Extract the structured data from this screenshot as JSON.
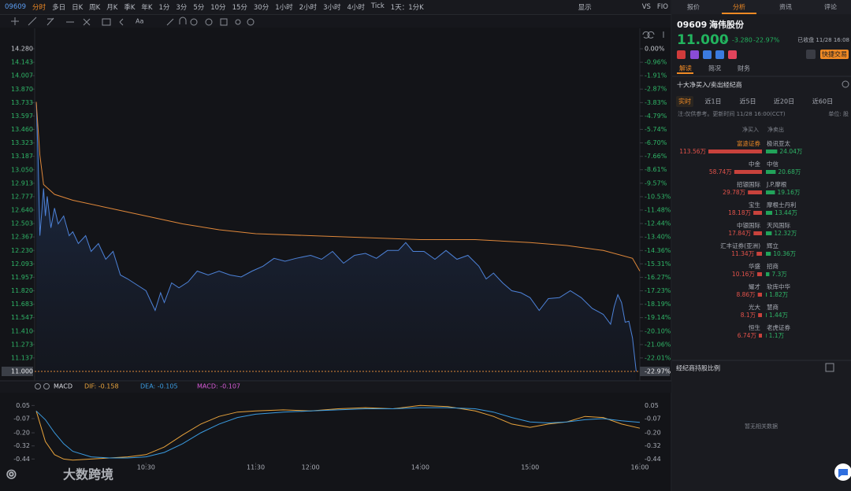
{
  "toolbar": {
    "code": "09609",
    "periods": [
      "分时",
      "多日",
      "日K",
      "周K",
      "月K",
      "季K",
      "年K",
      "1分",
      "3分",
      "5分",
      "10分",
      "15分",
      "30分",
      "1小时",
      "2小时",
      "3小时",
      "4小时",
      "Tick"
    ],
    "range": "1天：1分K",
    "display": "显示",
    "compare": "VS",
    "extra": "FIO",
    "font_tool": "Aa"
  },
  "chart_data": [
    {
      "type": "line",
      "xlim": [
        0,
        330
      ],
      "xticks": [
        {
          "value": 60,
          "label": "10:30"
        },
        {
          "value": 120,
          "label": "11:30"
        },
        {
          "value": 150,
          "label": "12:00"
        },
        {
          "value": 210,
          "label": "14:00"
        },
        {
          "value": 270,
          "label": "15:00"
        },
        {
          "value": 330,
          "label": "16:00"
        }
      ],
      "ylim": [
        10.9,
        14.38
      ],
      "yticks": [
        {
          "value": 14.28,
          "label": "14.280"
        },
        14.143,
        14.007,
        {
          "value": 13.87,
          "label": "13.870"
        },
        13.733,
        13.597,
        {
          "value": 13.46,
          "label": "13.460"
        },
        13.323,
        13.187,
        {
          "value": 13.05,
          "label": "13.050"
        },
        12.913,
        12.777,
        {
          "value": 12.64,
          "label": "12.640"
        },
        12.503,
        12.367,
        {
          "value": 12.23,
          "label": "12.230"
        },
        12.093,
        11.957,
        {
          "value": 11.82,
          "label": "11.820"
        },
        11.683,
        11.547,
        {
          "value": 11.41,
          "label": "11.410"
        },
        11.273,
        11.137
      ],
      "y2lim": [
        -23.67,
        0.7
      ],
      "y2ticks": [
        {
          "value": 0,
          "label": "0.00%"
        },
        {
          "value": -0.96,
          "label": "-0.96%"
        },
        {
          "value": -1.91,
          "label": "-1.91%"
        },
        {
          "value": -2.87,
          "label": "-2.87%"
        },
        {
          "value": -3.83,
          "label": "-3.83%"
        },
        {
          "value": -4.79,
          "label": "-4.79%"
        },
        {
          "value": -5.74,
          "label": "-5.74%"
        },
        {
          "value": -6.7,
          "label": "-6.70%"
        },
        {
          "value": -7.66,
          "label": "-7.66%"
        },
        {
          "value": -8.61,
          "label": "-8.61%"
        },
        {
          "value": -9.57,
          "label": "-9.57%"
        },
        {
          "value": -10.53,
          "label": "-10.53%"
        },
        {
          "value": -11.48,
          "label": "-11.48%"
        },
        {
          "value": -12.44,
          "label": "-12.44%"
        },
        {
          "value": -13.4,
          "label": "-13.40%"
        },
        {
          "value": -14.36,
          "label": "-14.36%"
        },
        {
          "value": -15.31,
          "label": "-15.31%"
        },
        {
          "value": -16.27,
          "label": "-16.27%"
        },
        {
          "value": -17.23,
          "label": "-17.23%"
        },
        {
          "value": -18.19,
          "label": "-18.19%"
        },
        {
          "value": -19.14,
          "label": "-19.14%"
        },
        {
          "value": -20.1,
          "label": "-20.10%"
        },
        {
          "value": -21.06,
          "label": "-21.06%"
        },
        {
          "value": -22.01,
          "label": "-22.01%"
        }
      ],
      "current": {
        "value": 11.0,
        "label": "11.000",
        "pct": -22.97,
        "pct_label": "-22.97%"
      },
      "series": [
        {
          "color": "#4d82d8",
          "x": [
            0,
            1,
            2,
            3,
            4,
            5,
            6,
            8,
            10,
            12,
            15,
            18,
            20,
            23,
            27,
            30,
            34,
            38,
            42,
            46,
            50,
            55,
            60,
            63,
            65,
            68,
            70,
            74,
            78,
            83,
            88,
            94,
            100,
            106,
            112,
            118,
            124,
            130,
            136,
            142,
            150,
            156,
            162,
            168,
            174,
            180,
            186,
            192,
            198,
            202,
            206,
            212,
            218,
            224,
            230,
            236,
            242,
            246,
            250,
            255,
            260,
            265,
            270,
            275,
            280,
            286,
            292,
            298,
            304,
            310,
            314,
            316,
            318,
            320,
            322,
            324,
            326,
            328
          ],
          "values": [
            13.74,
            13.18,
            12.38,
            12.62,
            12.86,
            12.58,
            12.78,
            12.46,
            12.66,
            12.5,
            12.58,
            12.38,
            12.42,
            12.3,
            12.38,
            12.22,
            12.3,
            12.14,
            12.22,
            11.98,
            11.94,
            11.88,
            11.82,
            11.7,
            11.62,
            11.8,
            11.7,
            11.9,
            11.85,
            11.91,
            12.02,
            11.98,
            12.02,
            11.98,
            11.96,
            12.02,
            12.07,
            12.15,
            12.12,
            12.15,
            12.18,
            12.14,
            12.22,
            12.1,
            12.18,
            12.2,
            12.15,
            12.23,
            12.23,
            12.31,
            12.22,
            12.22,
            12.14,
            12.23,
            12.14,
            12.18,
            12.07,
            11.94,
            12.0,
            11.9,
            11.82,
            11.8,
            11.75,
            11.62,
            11.74,
            11.75,
            11.82,
            11.75,
            11.64,
            11.58,
            11.48,
            11.66,
            11.78,
            11.7,
            11.5,
            11.51,
            11.34,
            11.0
          ]
        },
        {
          "color": "#e0883a",
          "x": [
            0,
            2,
            4,
            10,
            20,
            40,
            60,
            80,
            100,
            120,
            150,
            180,
            210,
            240,
            270,
            290,
            310,
            326,
            330
          ],
          "values": [
            13.74,
            13.2,
            12.9,
            12.8,
            12.74,
            12.66,
            12.58,
            12.5,
            12.44,
            12.4,
            12.38,
            12.36,
            12.34,
            12.34,
            12.31,
            12.28,
            12.23,
            12.15,
            12.02
          ]
        }
      ]
    },
    {
      "type": "line",
      "title": "MACD",
      "legend": [
        "DIF: -0.158",
        "DEA: -0.105",
        "MACD: -0.107"
      ],
      "xlim": [
        0,
        330
      ],
      "ylim": [
        -0.49,
        0.11
      ],
      "yticks": [
        0.05,
        -0.07,
        {
          "value": -0.2,
          "label": "-0.20"
        },
        -0.32,
        -0.44
      ],
      "series": [
        {
          "name": "DIF",
          "color": "#e8a33c",
          "x": [
            0,
            5,
            10,
            15,
            20,
            30,
            40,
            50,
            60,
            70,
            80,
            90,
            100,
            110,
            120,
            135,
            150,
            165,
            180,
            195,
            210,
            225,
            240,
            250,
            260,
            270,
            280,
            290,
            300,
            310,
            320,
            330
          ],
          "values": [
            0,
            -0.28,
            -0.4,
            -0.44,
            -0.45,
            -0.44,
            -0.43,
            -0.42,
            -0.4,
            -0.33,
            -0.22,
            -0.12,
            -0.05,
            -0.01,
            0,
            0.01,
            0,
            0.02,
            0.03,
            0.02,
            0.05,
            0.04,
            0,
            -0.05,
            -0.12,
            -0.15,
            -0.12,
            -0.1,
            -0.05,
            -0.06,
            -0.12,
            -0.158
          ]
        },
        {
          "name": "DEA",
          "color": "#3a9be0",
          "x": [
            0,
            5,
            10,
            15,
            20,
            30,
            40,
            50,
            60,
            70,
            80,
            90,
            100,
            110,
            120,
            135,
            150,
            165,
            180,
            195,
            210,
            225,
            240,
            250,
            260,
            270,
            280,
            290,
            300,
            310,
            320,
            330
          ],
          "values": [
            0,
            -0.08,
            -0.2,
            -0.3,
            -0.37,
            -0.42,
            -0.43,
            -0.43,
            -0.42,
            -0.38,
            -0.3,
            -0.2,
            -0.12,
            -0.06,
            -0.03,
            -0.01,
            0,
            0.01,
            0.02,
            0.02,
            0.03,
            0.03,
            0.02,
            -0.01,
            -0.06,
            -0.1,
            -0.11,
            -0.1,
            -0.08,
            -0.07,
            -0.09,
            -0.105
          ]
        }
      ]
    }
  ],
  "panel": {
    "tabs": [
      "报价",
      "分析",
      "资讯",
      "评论"
    ],
    "code": "09609",
    "name": "海伟股份",
    "price": "11.000",
    "change": "-3.280",
    "change_pct": "-22.97%",
    "status": "已收盘 11/28 16:08",
    "quick_trade": "快捷交易",
    "subtabs": [
      "解读",
      "简况",
      "财务"
    ],
    "section_title": "十大净买入/卖出经纪商",
    "filters": [
      "实时",
      "近1日",
      "近5日",
      "近20日",
      "近60日"
    ],
    "note": "注:仅供参考。更新时间 11/28 16:00(CCT)",
    "unit": "单位: 股",
    "buy_head": "净买入",
    "sell_head": "净卖出",
    "buyers": [
      {
        "name": "富途证券",
        "value": 113.56,
        "label": "113.56万"
      },
      {
        "name": "中金",
        "value": 58.74,
        "label": "58.74万"
      },
      {
        "name": "招银国际",
        "value": 29.78,
        "label": "29.78万"
      },
      {
        "name": "宝生",
        "value": 18.18,
        "label": "18.18万"
      },
      {
        "name": "中银国际",
        "value": 17.84,
        "label": "17.84万"
      },
      {
        "name": "汇丰证券(亚洲)",
        "value": 11.34,
        "label": "11.34万"
      },
      {
        "name": "华盛",
        "value": 10.16,
        "label": "10.16万"
      },
      {
        "name": "耀才",
        "value": 8.86,
        "label": "8.86万"
      },
      {
        "name": "光大",
        "value": 8.1,
        "label": "8.1万"
      },
      {
        "name": "恒生",
        "value": 6.74,
        "label": "6.74万"
      }
    ],
    "sellers": [
      {
        "name": "极讯亚太",
        "value": 24.04,
        "label": "24.04万"
      },
      {
        "name": "中信",
        "value": 20.68,
        "label": "20.68万"
      },
      {
        "name": "J.P.摩根",
        "value": 19.16,
        "label": "19.16万"
      },
      {
        "name": "摩根士丹利",
        "value": 13.44,
        "label": "13.44万"
      },
      {
        "name": "天风国际",
        "value": 12.32,
        "label": "12.32万"
      },
      {
        "name": "辉立",
        "value": 10.36,
        "label": "10.36万"
      },
      {
        "name": "招商",
        "value": 7.3,
        "label": "7.3万"
      },
      {
        "name": "软库中华",
        "value": 1.82,
        "label": "1.82万"
      },
      {
        "name": "慧商",
        "value": 1.44,
        "label": "1.44万"
      },
      {
        "name": "老虎证券",
        "value": 1.1,
        "label": "1.1万"
      }
    ],
    "holding_title": "经纪商持股比例",
    "empty": "暂无相关数据"
  },
  "watermark": "大数跨境"
}
